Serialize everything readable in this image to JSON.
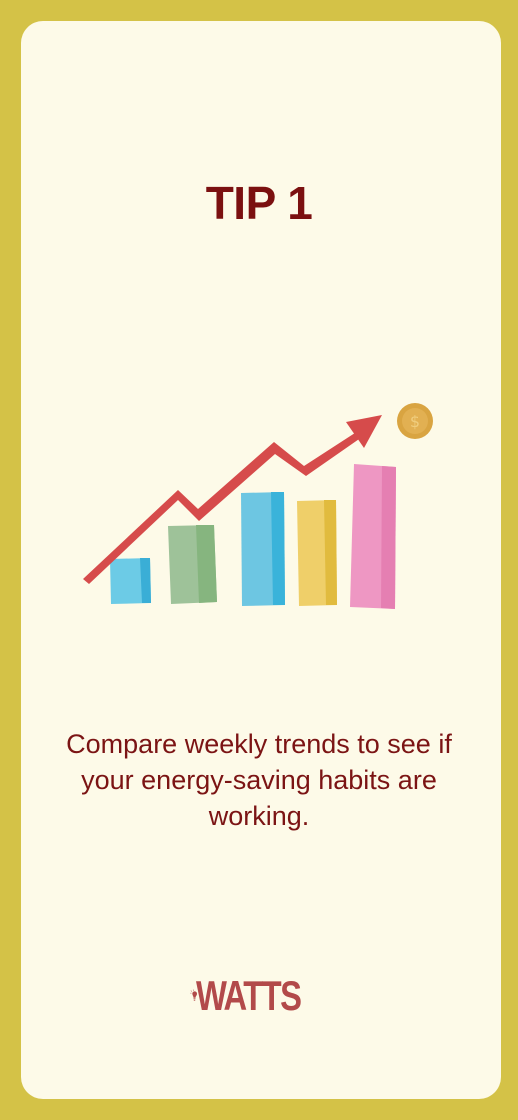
{
  "card": {
    "title": "TIP 1",
    "text": "Compare weekly trends to see if your energy-saving habits are working."
  },
  "illustration": {
    "icon": "growth-bar-chart-icon",
    "coin_icon": "coin-icon",
    "arrow_icon": "trend-arrow-icon",
    "colors": {
      "arrow": "#d64b4b",
      "coin": "#d9a441",
      "bar_1": "#6ccbe6",
      "bar_2": "#9ec299",
      "bar_3": "#6dc6e2",
      "bar_4": "#efcf69",
      "bar_5": "#ee97c3"
    }
  },
  "brand": {
    "logo_text": "WATTS",
    "logo_icon": "lightbulb-icon",
    "color": "#b24a4a"
  },
  "theme": {
    "border": "#d4c247",
    "card_background": "#fdfae8",
    "text": "#7b1414"
  }
}
